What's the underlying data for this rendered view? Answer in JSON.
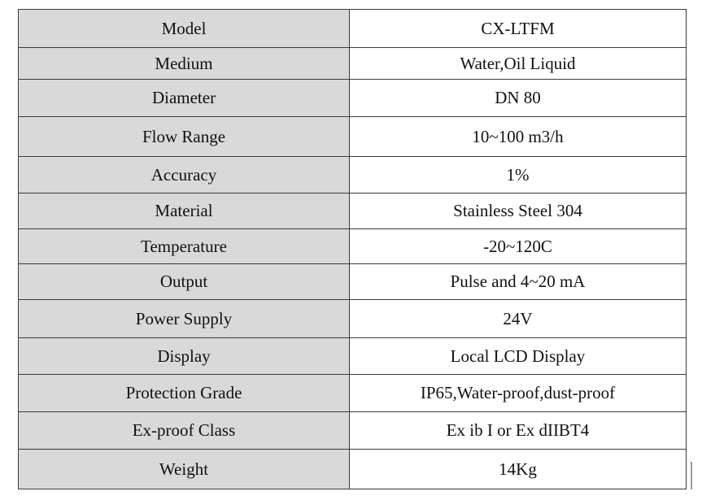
{
  "spec_table": {
    "rows": [
      {
        "label": "Model",
        "value": "CX-LTFM"
      },
      {
        "label": "Medium",
        "value": "Water,Oil Liquid"
      },
      {
        "label": "Diameter",
        "value": "DN 80"
      },
      {
        "label": "Flow Range",
        "value": "10~100 m3/h"
      },
      {
        "label": "Accuracy",
        "value": "1%"
      },
      {
        "label": "Material",
        "value": "Stainless Steel 304"
      },
      {
        "label": "Temperature",
        "value": "-20~120C"
      },
      {
        "label": "Output",
        "value": "Pulse and 4~20 mA"
      },
      {
        "label": "Power Supply",
        "value": "24V"
      },
      {
        "label": "Display",
        "value": "Local LCD Display"
      },
      {
        "label": "Protection Grade",
        "value": "IP65,Water-proof,dust-proof"
      },
      {
        "label": "Ex-proof Class",
        "value": "Ex ib I or Ex dIIBT4"
      },
      {
        "label": "Weight",
        "value": "14Kg"
      }
    ]
  },
  "colors": {
    "label_background": "#d9d9d9",
    "value_background": "#ffffff",
    "border": "#3a3a3a"
  }
}
